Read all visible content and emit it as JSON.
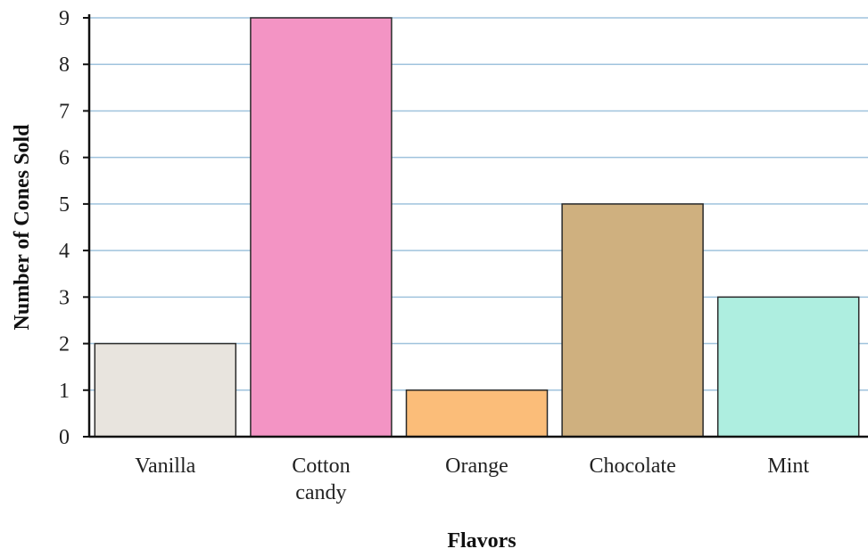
{
  "chart_data": {
    "type": "bar",
    "title": "",
    "xlabel": "Flavors",
    "ylabel": "Number of Cones Sold",
    "categories": [
      [
        "Vanilla"
      ],
      [
        "Cotton",
        "candy"
      ],
      [
        "Orange"
      ],
      [
        "Chocolate"
      ],
      [
        "Mint"
      ]
    ],
    "values": [
      2,
      9,
      1,
      5,
      3
    ],
    "ylim": [
      0,
      9
    ],
    "yticks": [
      "0",
      "1",
      "2",
      "3",
      "4",
      "5",
      "6",
      "7",
      "8",
      "9"
    ],
    "grid": true,
    "legend": "none",
    "colors": {
      "bars": [
        "#e8e4de",
        "#f394c4",
        "#fbbd79",
        "#cfb07f",
        "#aeeee0"
      ],
      "gridline": "#9fc3dd",
      "axis": "#111111",
      "bar_outline": "#2a2a2a"
    }
  }
}
